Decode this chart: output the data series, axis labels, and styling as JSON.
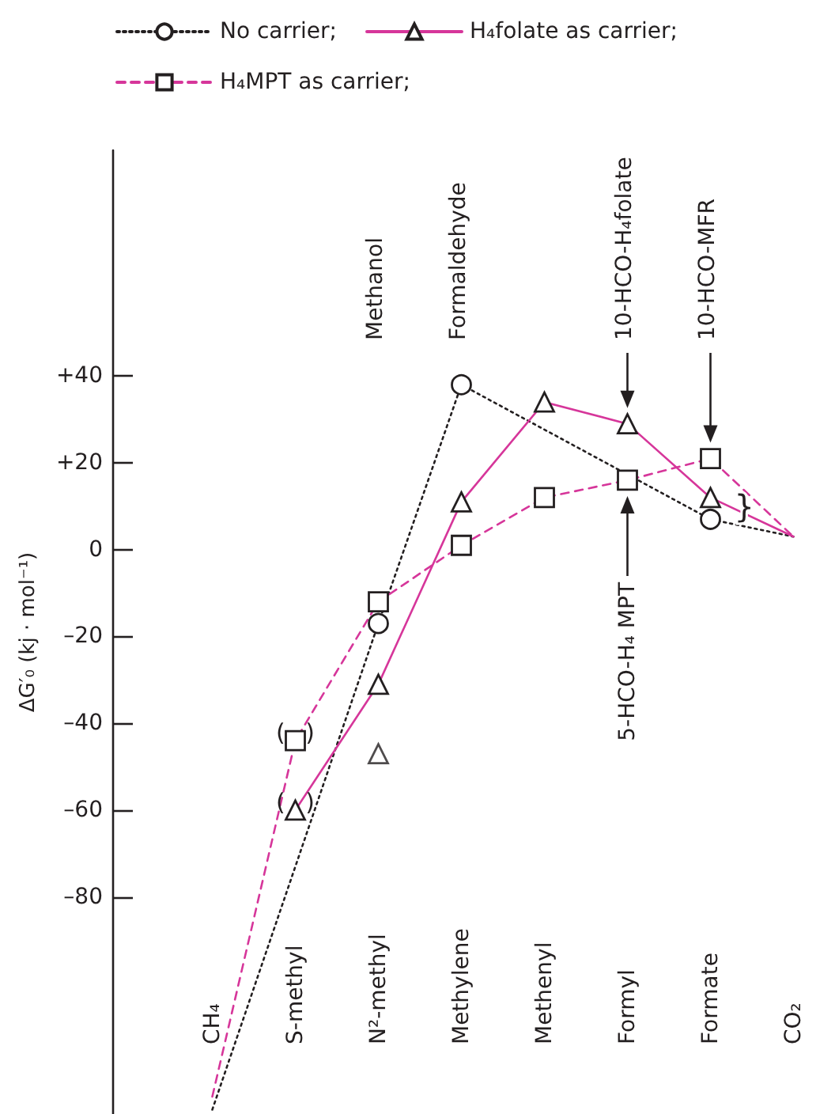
{
  "chart_data": {
    "type": "line",
    "ylabel": "ΔG′₀ (kj · mol⁻¹)",
    "categories": [
      "CH₄",
      "S-methyl",
      "N²-methyl",
      "Methylene",
      "Methenyl",
      "Formyl",
      "Formate",
      "CO₂"
    ],
    "series": [
      {
        "name": "No carrier;",
        "color": "#231f20",
        "marker": "circle",
        "line_style": "dotted",
        "values": [
          -129,
          null,
          -17,
          38,
          null,
          null,
          7,
          3
        ]
      },
      {
        "name": "H₄folate as carrier;",
        "color": "#d6369a",
        "marker": "triangle",
        "line_style": "solid",
        "values": [
          null,
          -60,
          -31,
          11,
          34,
          29,
          12,
          3
        ]
      },
      {
        "name": "H₄MPT as carrier;",
        "color": "#d6369a",
        "marker": "square",
        "line_style": "dashed",
        "values": [
          -126,
          -44,
          -12,
          1,
          12,
          16,
          21,
          3
        ]
      },
      {
        "type": "scatter",
        "color": "#231f20",
        "marker": "triangle",
        "x": [
          "N²-methyl"
        ],
        "values": [
          -47
        ]
      }
    ],
    "ylim": [
      -130,
      92
    ],
    "yticks": [
      {
        "value": -80,
        "label": "–80"
      },
      {
        "value": -60,
        "label": "–60"
      },
      {
        "value": -40,
        "label": "–40"
      },
      {
        "value": -20,
        "label": "–20"
      },
      0,
      {
        "value": 20,
        "label": "+20"
      },
      {
        "value": 40,
        "label": "+40"
      }
    ],
    "grid": false,
    "legend": "top left",
    "annotations": [
      "Methanol",
      "Formaldehyde",
      "10-HCO-H₄folate",
      "10-HCO-MFR",
      "5-HCO-H₄ MPT",
      {
        "text": "( )",
        "x": "S-methyl",
        "y": -44
      },
      {
        "text": "( )",
        "x": "S-methyl",
        "y": -60
      },
      {
        "text": "}",
        "x": "Formate",
        "y": 10
      }
    ]
  }
}
